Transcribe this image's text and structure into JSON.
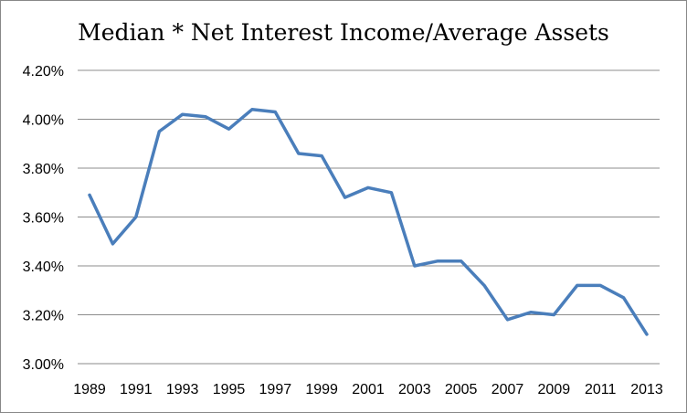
{
  "chart_data": {
    "type": "line",
    "title": "Median * Net Interest Income/Average Assets",
    "xlabel": "",
    "ylabel": "",
    "ylim": [
      3.0,
      4.2
    ],
    "yticks": [
      "3.00%",
      "3.20%",
      "3.40%",
      "3.60%",
      "3.80%",
      "4.00%",
      "4.20%"
    ],
    "xticks": [
      "1989",
      "1991",
      "1993",
      "1995",
      "1997",
      "1999",
      "2001",
      "2003",
      "2005",
      "2007",
      "2009",
      "2011",
      "2013"
    ],
    "grid": true,
    "legend": "none",
    "line_color": "#4a7ebb",
    "x": [
      1989,
      1990,
      1991,
      1992,
      1993,
      1994,
      1995,
      1996,
      1997,
      1998,
      1999,
      2000,
      2001,
      2002,
      2003,
      2004,
      2005,
      2006,
      2007,
      2008,
      2009,
      2010,
      2011,
      2012,
      2013
    ],
    "values": [
      3.69,
      3.49,
      3.6,
      3.95,
      4.02,
      4.01,
      3.96,
      4.04,
      4.03,
      3.86,
      3.85,
      3.68,
      3.72,
      3.7,
      3.4,
      3.42,
      3.42,
      3.32,
      3.18,
      3.21,
      3.2,
      3.32,
      3.32,
      3.27,
      3.12
    ]
  }
}
